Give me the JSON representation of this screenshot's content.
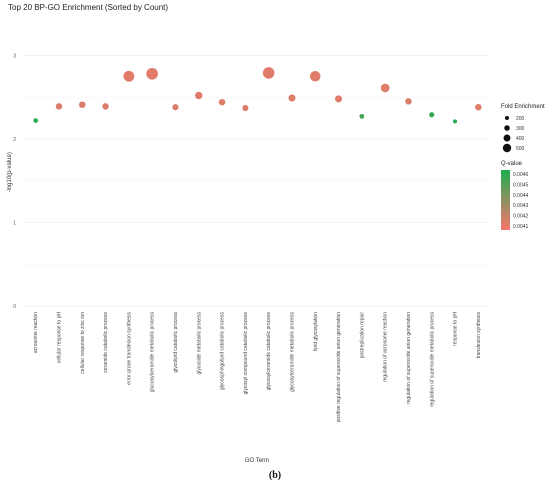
{
  "chart_data": {
    "type": "scatter",
    "title": "Top 20 BP-GO Enrichment (Sorted by Count)",
    "xlabel": "GO Term",
    "ylabel": "-log10(p-value)",
    "ylim": [
      0,
      3.4
    ],
    "yticks": [
      "0",
      "1",
      "2",
      "3"
    ],
    "grid": true,
    "legend_position": "right",
    "categories": [
      "acrosome reaction",
      "cellular response to pH",
      "cellular response to zinc ion",
      "ceramide catabolic process",
      "error-prone translesion synthesis",
      "glucosylceramide metabolic process",
      "glycolipid catabolic process",
      "glycoside metabolic process",
      "glycosphingolipid catabolic process",
      "glycosyl compound catabolic process",
      "glycosylceramide catabolic process",
      "glycosylceramide metabolic process",
      "lipid glycosylation",
      "positive regulation of superoxide anion generation",
      "postreplication repair",
      "regulation of acrosome reaction",
      "regulation of superoxide anion generation",
      "regulation of superoxide metabolic process",
      "response to pH",
      "translesion synthesis"
    ],
    "y": [
      2.22,
      2.39,
      2.41,
      2.39,
      2.75,
      2.78,
      2.38,
      2.52,
      2.44,
      2.37,
      2.79,
      2.49,
      2.75,
      2.48,
      2.27,
      2.61,
      2.45,
      2.29,
      2.21,
      2.38
    ],
    "fold_enrichment": [
      180,
      280,
      280,
      280,
      520,
      560,
      260,
      330,
      280,
      260,
      560,
      310,
      500,
      310,
      190,
      400,
      280,
      210,
      150,
      280
    ],
    "q_value": [
      0.00462,
      0.00413,
      0.00413,
      0.00413,
      0.00411,
      0.00411,
      0.00413,
      0.00412,
      0.00413,
      0.00413,
      0.00411,
      0.00412,
      0.00411,
      0.00412,
      0.00455,
      0.00411,
      0.00413,
      0.0046,
      0.00462,
      0.00413
    ],
    "legend": {
      "size_title": "Fold Enrichment",
      "size_breaks": [
        200,
        300,
        400,
        500
      ],
      "size_labels": [
        "200",
        "300",
        "400",
        "500"
      ],
      "color_title": "Q-value",
      "color_labels": [
        "0.0046",
        "0.0045",
        "0.0044",
        "0.0043",
        "0.0042",
        "0.0041"
      ],
      "color_range": [
        0.00405,
        0.00465
      ],
      "color_high": "#1fad4e",
      "color_low": "#f8766d"
    }
  },
  "figure": {
    "caption": "(b)"
  }
}
